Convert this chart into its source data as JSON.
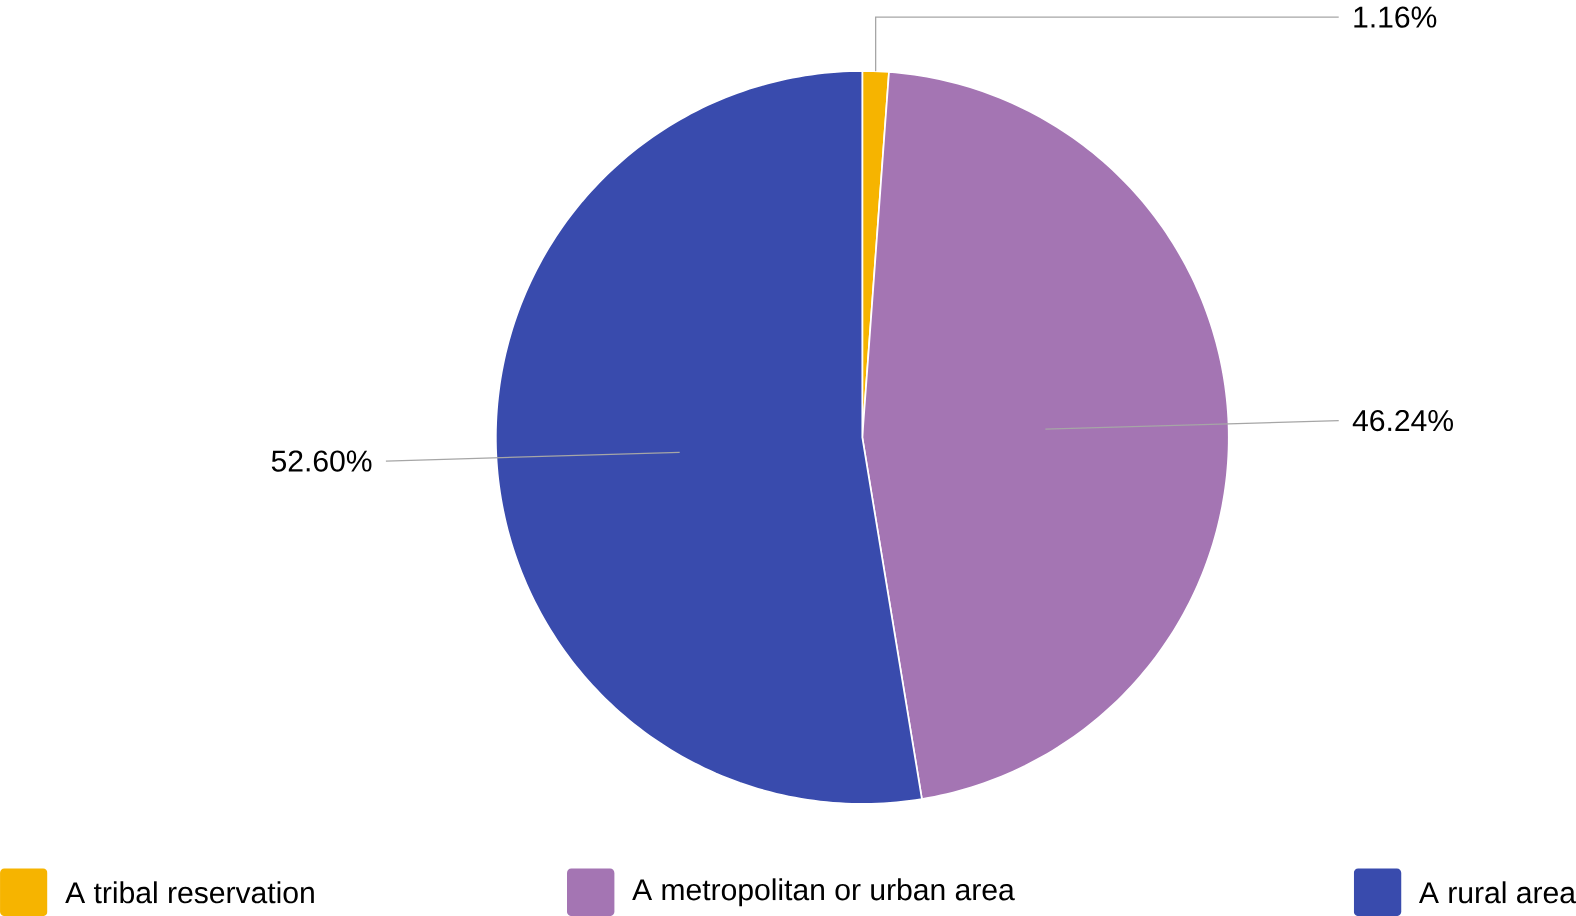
{
  "chart_data": {
    "type": "pie",
    "categories": [
      "A tribal reservation",
      "A metropolitan or urban area",
      "A rural area"
    ],
    "values": [
      1.16,
      46.24,
      52.6
    ],
    "value_labels": [
      "1.16%",
      "46.24%",
      "52.60%"
    ],
    "colors": [
      "#f6b400",
      "#a475b3",
      "#394bad"
    ],
    "legend": "bottom"
  }
}
